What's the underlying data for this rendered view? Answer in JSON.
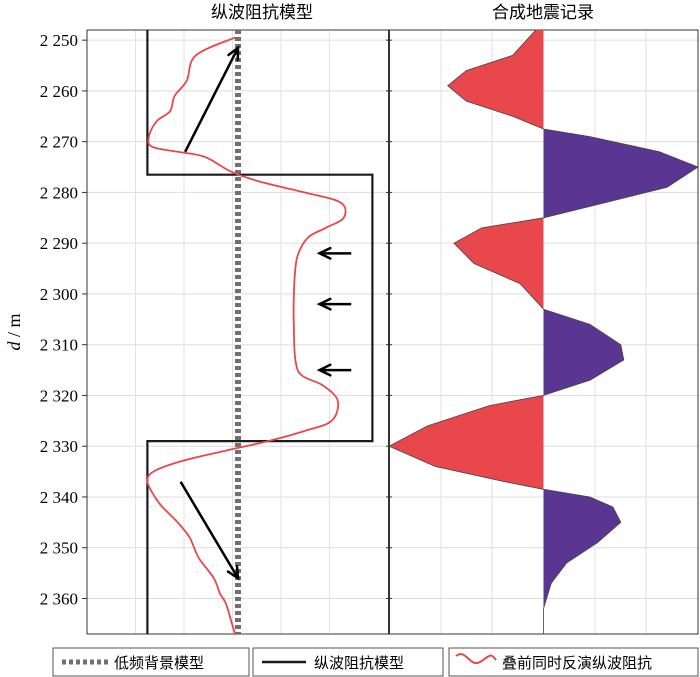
{
  "chart_data": {
    "type": "line",
    "ylabel_italic": "d",
    "ylabel_unit": " / m",
    "y_range": [
      2248,
      2367
    ],
    "y_ticks": [
      {
        "value": 2250,
        "label": "2 250"
      },
      {
        "value": 2260,
        "label": "2 260"
      },
      {
        "value": 2270,
        "label": "2 270"
      },
      {
        "value": 2280,
        "label": "2 280"
      },
      {
        "value": 2290,
        "label": "2 290"
      },
      {
        "value": 2300,
        "label": "2 300"
      },
      {
        "value": 2310,
        "label": "2 310"
      },
      {
        "value": 2320,
        "label": "2 320"
      },
      {
        "value": 2330,
        "label": "2 330"
      },
      {
        "value": 2340,
        "label": "2 340"
      },
      {
        "value": 2350,
        "label": "2 350"
      },
      {
        "value": 2360,
        "label": "2 360"
      }
    ],
    "grid": true,
    "panels": [
      {
        "title": "纵波阻抗模型",
        "x_range": [
          0,
          1
        ],
        "series": [
          {
            "name": "低频背景模型",
            "style": "dotted",
            "color": "#707070",
            "points": [
              [
                0.5,
                2248
              ],
              [
                0.5,
                2367
              ]
            ]
          },
          {
            "name": "纵波阻抗模型",
            "style": "solid",
            "color": "#1a1a1a",
            "points": [
              [
                0.2,
                2248
              ],
              [
                0.2,
                2276.5
              ],
              [
                0.945,
                2276.5
              ],
              [
                0.945,
                2329
              ],
              [
                0.2,
                2329
              ],
              [
                0.2,
                2331
              ],
              [
                0.2,
                2367
              ]
            ]
          },
          {
            "name": "叠前同时反演纵波阻抗",
            "style": "solid",
            "color": "#e8474c",
            "points": [
              [
                0.49,
                2249.5
              ],
              [
                0.36,
                2253
              ],
              [
                0.33,
                2258
              ],
              [
                0.29,
                2261
              ],
              [
                0.275,
                2264
              ],
              [
                0.23,
                2266
              ],
              [
                0.205,
                2269
              ],
              [
                0.215,
                2271
              ],
              [
                0.3,
                2272
              ],
              [
                0.39,
                2273
              ],
              [
                0.48,
                2276
              ],
              [
                0.58,
                2278
              ],
              [
                0.72,
                2280
              ],
              [
                0.84,
                2282
              ],
              [
                0.85,
                2285
              ],
              [
                0.79,
                2287
              ],
              [
                0.73,
                2289
              ],
              [
                0.695,
                2293
              ],
              [
                0.685,
                2300
              ],
              [
                0.685,
                2307
              ],
              [
                0.69,
                2313
              ],
              [
                0.71,
                2316
              ],
              [
                0.78,
                2318
              ],
              [
                0.83,
                2321
              ],
              [
                0.81,
                2325
              ],
              [
                0.72,
                2327
              ],
              [
                0.6,
                2329
              ],
              [
                0.45,
                2331
              ],
              [
                0.31,
                2333
              ],
              [
                0.22,
                2335
              ],
              [
                0.2,
                2337
              ],
              [
                0.225,
                2340
              ],
              [
                0.25,
                2342
              ],
              [
                0.3,
                2345
              ],
              [
                0.34,
                2348
              ],
              [
                0.37,
                2352
              ],
              [
                0.42,
                2356
              ],
              [
                0.44,
                2359
              ],
              [
                0.46,
                2361
              ],
              [
                0.48,
                2365
              ],
              [
                0.49,
                2367
              ]
            ]
          }
        ],
        "annotations": [
          {
            "type": "arrow",
            "from": [
              0.325,
              2272
            ],
            "to": [
              0.5,
              2251.5
            ]
          },
          {
            "type": "arrow",
            "from": [
              0.875,
              2292
            ],
            "to": [
              0.77,
              2292
            ]
          },
          {
            "type": "arrow",
            "from": [
              0.875,
              2302
            ],
            "to": [
              0.77,
              2302
            ]
          },
          {
            "type": "arrow",
            "from": [
              0.875,
              2315
            ],
            "to": [
              0.77,
              2315
            ]
          },
          {
            "type": "arrow",
            "from": [
              0.31,
              2337
            ],
            "to": [
              0.5,
              2356
            ]
          }
        ]
      },
      {
        "title": "合成地震记录",
        "type": "wiggle",
        "x_range": [
          -1,
          1
        ],
        "positive_color": "#5b3592",
        "negative_color": "#e8474c",
        "trace": [
          [
            -0.05,
            2248
          ],
          [
            -0.2,
            2253
          ],
          [
            -0.5,
            2256
          ],
          [
            -0.62,
            2259
          ],
          [
            -0.5,
            2262
          ],
          [
            -0.2,
            2265
          ],
          [
            0,
            2267.5
          ],
          [
            0.3,
            2269
          ],
          [
            0.75,
            2272
          ],
          [
            1.0,
            2275
          ],
          [
            0.8,
            2279
          ],
          [
            0.4,
            2282
          ],
          [
            0,
            2285
          ],
          [
            -0.4,
            2287
          ],
          [
            -0.58,
            2290
          ],
          [
            -0.45,
            2294
          ],
          [
            -0.15,
            2298
          ],
          [
            0,
            2303
          ],
          [
            0.3,
            2306
          ],
          [
            0.5,
            2310
          ],
          [
            0.52,
            2313
          ],
          [
            0.3,
            2317
          ],
          [
            0,
            2320
          ],
          [
            -0.35,
            2322
          ],
          [
            -0.75,
            2326
          ],
          [
            -1.0,
            2330
          ],
          [
            -0.7,
            2334
          ],
          [
            -0.25,
            2337
          ],
          [
            0,
            2338.5
          ],
          [
            0.3,
            2340
          ],
          [
            0.45,
            2342
          ],
          [
            0.5,
            2345
          ],
          [
            0.35,
            2349
          ],
          [
            0.15,
            2353
          ],
          [
            0.05,
            2357
          ],
          [
            0.0,
            2362
          ],
          [
            0.0,
            2367
          ]
        ]
      }
    ],
    "legend": {
      "placement": "bottom",
      "items": [
        {
          "label": "低频背景模型",
          "style": "dotted",
          "color": "#707070"
        },
        {
          "label": "纵波阻抗模型",
          "style": "solid",
          "color": "#1a1a1a"
        },
        {
          "label": "叠前同时反演纵波阻抗",
          "style": "wiggle",
          "color": "#e8474c"
        }
      ]
    }
  }
}
